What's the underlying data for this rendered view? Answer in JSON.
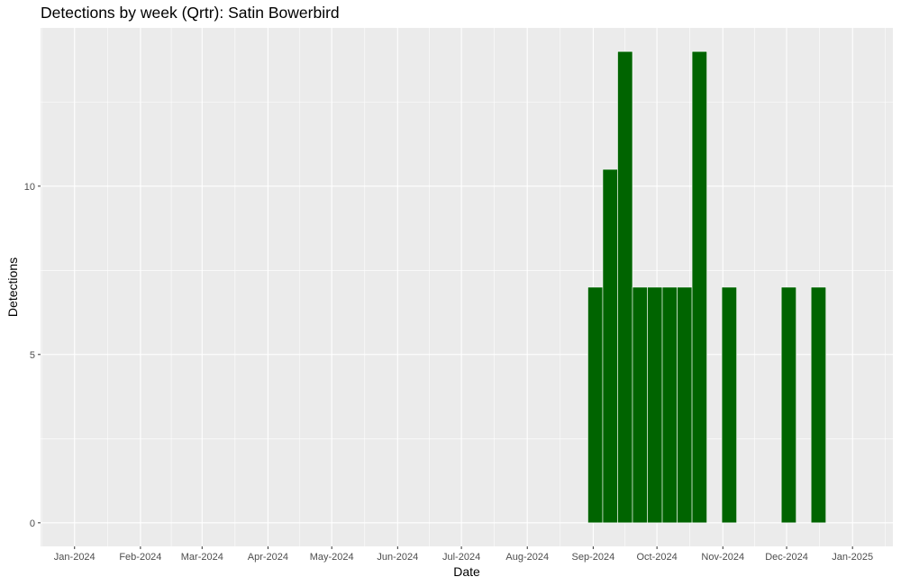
{
  "chart_data": {
    "type": "bar",
    "title": "Detections by week (Qrtr): Satin Bowerbird",
    "xlabel": "Date",
    "ylabel": "Detections",
    "xlim": [
      "2023-12-16",
      "2025-01-20"
    ],
    "ylim": [
      -0.7,
      14.7
    ],
    "x_ticks": [
      {
        "date": "2024-01-01",
        "label": "Jan-2024"
      },
      {
        "date": "2024-02-01",
        "label": "Feb-2024"
      },
      {
        "date": "2024-03-01",
        "label": "Mar-2024"
      },
      {
        "date": "2024-04-01",
        "label": "Apr-2024"
      },
      {
        "date": "2024-05-01",
        "label": "May-2024"
      },
      {
        "date": "2024-06-01",
        "label": "Jun-2024"
      },
      {
        "date": "2024-07-01",
        "label": "Jul-2024"
      },
      {
        "date": "2024-08-01",
        "label": "Aug-2024"
      },
      {
        "date": "2024-09-01",
        "label": "Sep-2024"
      },
      {
        "date": "2024-10-01",
        "label": "Oct-2024"
      },
      {
        "date": "2024-11-01",
        "label": "Nov-2024"
      },
      {
        "date": "2024-12-01",
        "label": "Dec-2024"
      },
      {
        "date": "2025-01-01",
        "label": "Jan-2025"
      }
    ],
    "y_ticks": [
      {
        "value": 0,
        "label": "0"
      },
      {
        "value": 5,
        "label": "5"
      },
      {
        "value": 10,
        "label": "10"
      }
    ],
    "bar_color": "#006400",
    "panel_color": "#EBEBEB",
    "grid": true,
    "legend": "none",
    "bars": [
      {
        "week": "2024-09-02",
        "value": 7
      },
      {
        "week": "2024-09-09",
        "value": 10.5
      },
      {
        "week": "2024-09-16",
        "value": 14
      },
      {
        "week": "2024-09-23",
        "value": 7
      },
      {
        "week": "2024-09-30",
        "value": 7
      },
      {
        "week": "2024-10-07",
        "value": 7
      },
      {
        "week": "2024-10-14",
        "value": 7
      },
      {
        "week": "2024-10-21",
        "value": 14
      },
      {
        "week": "2024-11-04",
        "value": 7
      },
      {
        "week": "2024-12-02",
        "value": 7
      },
      {
        "week": "2024-12-16",
        "value": 7
      }
    ]
  }
}
